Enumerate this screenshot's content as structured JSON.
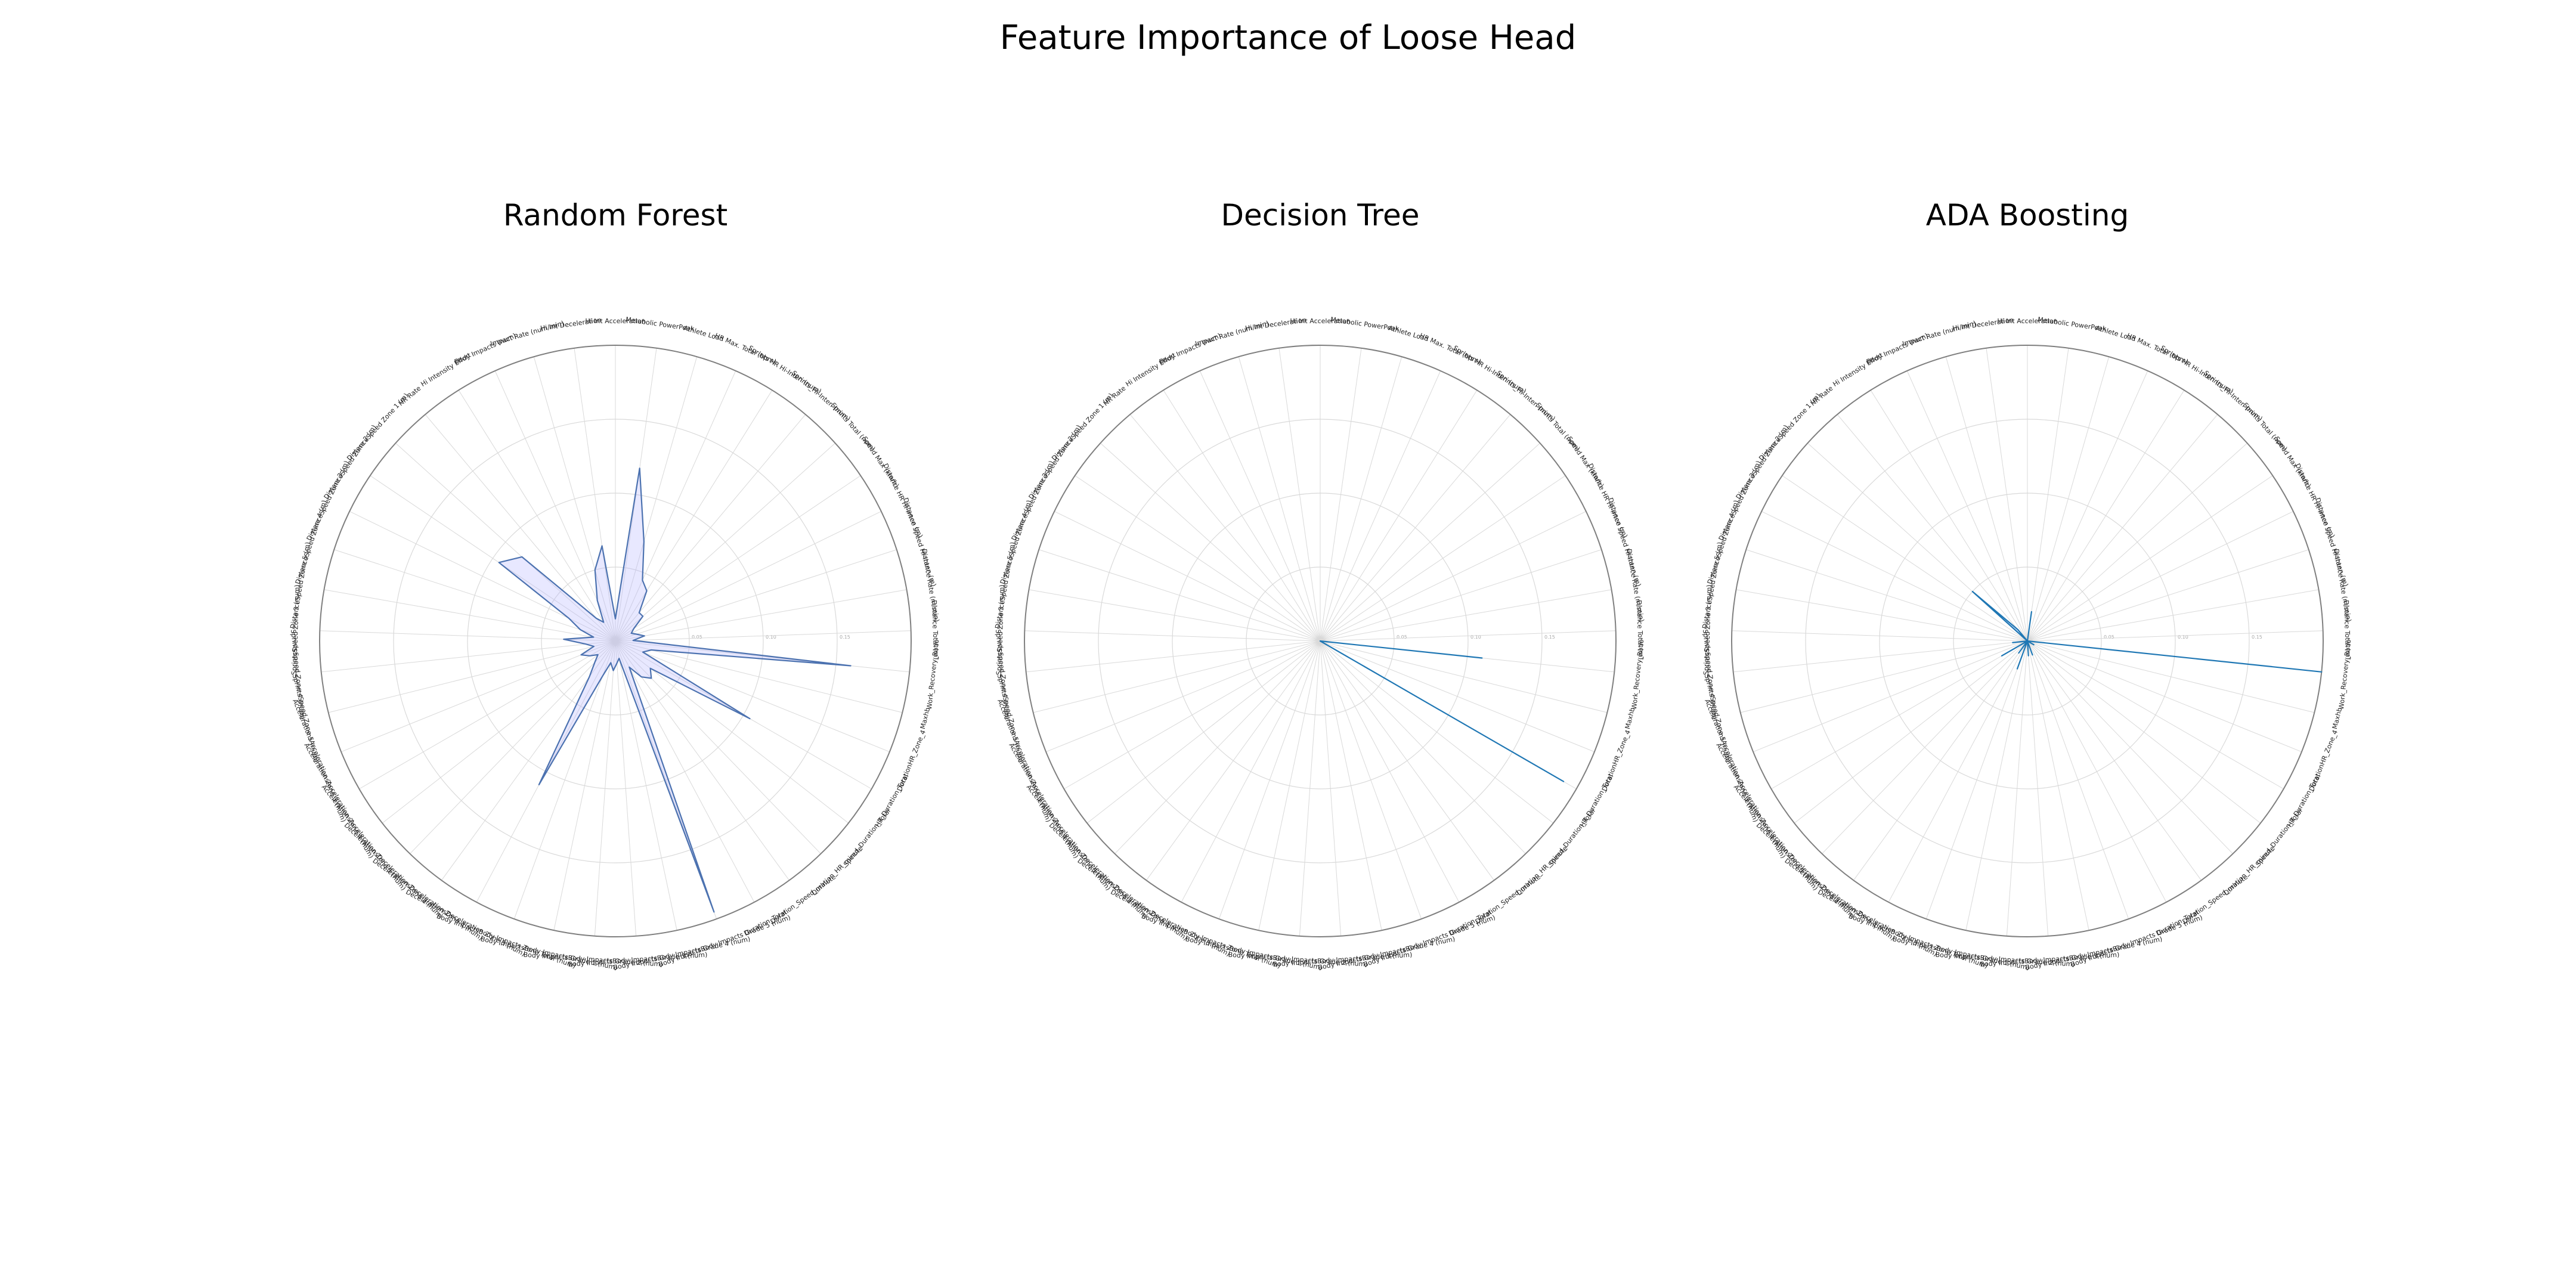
{
  "figure": {
    "title": "Feature Importance of Loose Head"
  },
  "chart_data": [
    {
      "type": "radar",
      "title": "Random Forest",
      "features": [
        "Hi Int Acceleration",
        "Metabolic PowerPeak",
        "Athlete Load",
        "HR Max. Total (bpm)",
        "Sprints HR Hi-Inten (num)",
        "Sprints_Hi-Inten (num)",
        "Sprints Total (num)",
        "Speed Max (km/h)",
        "Distance HR Hi-Inten (m)",
        "Distance Speed Hi-Inten (m)",
        "Distance Rate (m/min)",
        "Distance  Total (m)",
        "Work_Recovery_Ratio",
        "Maxhb",
        "DurationHR_Zone_4",
        "HR_Duration_Total",
        "Speed_Duration_Total",
        "Duration_HR_minute",
        "Duration_Speed_minute",
        "Duration_Total",
        "Body ImpactsBody Impacts Grade 5 (num)",
        "Body ImpactsBody Impacts Grade 4 (num)",
        "Body ImpactsBody Impacts Grade 3 (num)",
        "Body ImpactsBody Impacts Grade 2 (num)",
        "Body ImpactsBody Impacts Grade 1 (num)",
        "Body ImpactsBody Impacts Zone Total (num)",
        "DecelerationsDeceleration Zone 5 (num)",
        "DecelerationsDeceleration Zone 4 (num)",
        "DecelerationsDeceleration Zone 3 (num)",
        "AccelerationsAcceleration Zone 5 (num)",
        "AccelerationsAcceleration Zone 4 (num)",
        "AccelerationsAcceleration Zone 3 (num)",
        "SprintsSpeed Zone 5 (num)",
        "SprintsSpeed Zone 4 (num)",
        "SprintsSpeed Zone 3 (num)",
        "DistanceSpeed Zone 5  (m)",
        "DistanceSpeed Zone 4  (m)",
        "DistanceSpeed Zone 3  (m)",
        "DistanceSpeed Zone 2  (m)",
        "DistanceSpeed Zone 1  (m)",
        "HR Rate",
        "Hi Intensity Effort",
        "Body Impacts (num)",
        "Impact Rate (num/min)",
        "Hi Int Deceleration"
      ],
      "ticks": [
        "0.05",
        "0.10",
        "0.15"
      ],
      "ylim": [
        0,
        0.2
      ],
      "values": [
        0.015,
        0.118,
        0.07,
        0.045,
        0.04,
        0.025,
        0.025,
        0.015,
        0.012,
        0.015,
        0.02,
        0.012,
        0.16,
        0.025,
        0.02,
        0.105,
        0.03,
        0.035,
        0.03,
        0.02,
        0.195,
        0.012,
        0.015,
        0.02,
        0.015,
        0.025,
        0.11,
        0.03,
        0.02,
        0.015,
        0.02,
        0.025,
        0.015,
        0.02,
        0.035,
        0.015,
        0.025,
        0.035,
        0.095,
        0.085,
        0.02,
        0.015,
        0.03,
        0.05,
        0.065
      ],
      "color": "#4c72b0",
      "fill": "#b3b3ff"
    },
    {
      "type": "radar",
      "title": "Decision Tree",
      "features": [
        "Hi Int Acceleration",
        "Metabolic PowerPeak",
        "Athlete Load",
        "HR Max. Total (bpm)",
        "Sprints HR Hi-Inten (num)",
        "Sprints_Hi-Inten (num)",
        "Sprints Total (num)",
        "Speed Max (km/h)",
        "Distance HR Hi-Inten (m)",
        "Distance Speed Hi-Inten (m)",
        "Distance Rate (m/min)",
        "Distance  Total (m)",
        "Work_Recovery_Ratio",
        "Maxhb",
        "DurationHR_Zone_4",
        "HR_Duration_Total",
        "Speed_Duration_Total",
        "Duration_HR_minute",
        "Duration_Speed_minute",
        "Duration_Total",
        "Body ImpactsBody Impacts Grade 5 (num)",
        "Body ImpactsBody Impacts Grade 4 (num)",
        "Body ImpactsBody Impacts Grade 3 (num)",
        "Body ImpactsBody Impacts Grade 2 (num)",
        "Body ImpactsBody Impacts Grade 1 (num)",
        "Body ImpactsBody Impacts Zone Total (num)",
        "DecelerationsDeceleration Zone 5 (num)",
        "DecelerationsDeceleration Zone 4 (num)",
        "DecelerationsDeceleration Zone 3 (num)",
        "AccelerationsAcceleration Zone 5 (num)",
        "AccelerationsAcceleration Zone 4 (num)",
        "AccelerationsAcceleration Zone 3 (num)",
        "SprintsSpeed Zone 5 (num)",
        "SprintsSpeed Zone 4 (num)",
        "SprintsSpeed Zone 3 (num)",
        "DistanceSpeed Zone 5  (m)",
        "DistanceSpeed Zone 4  (m)",
        "DistanceSpeed Zone 3  (m)",
        "DistanceSpeed Zone 2  (m)",
        "DistanceSpeed Zone 1  (m)",
        "HR Rate",
        "Hi Intensity Effort",
        "Body Impacts (num)",
        "Impact Rate (num/min)",
        "Hi Int Deceleration"
      ],
      "ticks": [
        "0.05",
        "0.10",
        "0.15"
      ],
      "ylim": [
        0,
        0.2
      ],
      "values": [
        0,
        0,
        0,
        0,
        0,
        0,
        0,
        0,
        0,
        0,
        0,
        0,
        0.11,
        0,
        0,
        0.19,
        0,
        0,
        0,
        0,
        0,
        0,
        0,
        0,
        0,
        0,
        0,
        0,
        0,
        0,
        0,
        0,
        0,
        0,
        0,
        0,
        0,
        0,
        0,
        0,
        0,
        0,
        0,
        0,
        0
      ],
      "color": "#1f77b4",
      "fill": "#b3b3ff"
    },
    {
      "type": "radar",
      "title": "ADA Boosting",
      "features": [
        "Hi Int Acceleration",
        "Metabolic PowerPeak",
        "Athlete Load",
        "HR Max. Total (bpm)",
        "Sprints HR Hi-Inten (num)",
        "Sprints_Hi-Inten (num)",
        "Sprints Total (num)",
        "Speed Max (km/h)",
        "Distance HR Hi-Inten (m)",
        "Distance Speed Hi-Inten (m)",
        "Distance Rate (m/min)",
        "Distance  Total (m)",
        "Work_Recovery_Ratio",
        "Maxhb",
        "DurationHR_Zone_4",
        "HR_Duration_Total",
        "Speed_Duration_Total",
        "Duration_HR_minute",
        "Duration_Speed_minute",
        "Duration_Total",
        "Body ImpactsBody Impacts Grade 5 (num)",
        "Body ImpactsBody Impacts Grade 4 (num)",
        "Body ImpactsBody Impacts Grade 3 (num)",
        "Body ImpactsBody Impacts Grade 2 (num)",
        "Body ImpactsBody Impacts Grade 1 (num)",
        "Body ImpactsBody Impacts Zone Total (num)",
        "DecelerationsDeceleration Zone 5 (num)",
        "DecelerationsDeceleration Zone 4 (num)",
        "DecelerationsDeceleration Zone 3 (num)",
        "AccelerationsAcceleration Zone 5 (num)",
        "AccelerationsAcceleration Zone 4 (num)",
        "AccelerationsAcceleration Zone 3 (num)",
        "SprintsSpeed Zone 5 (num)",
        "SprintsSpeed Zone 4 (num)",
        "SprintsSpeed Zone 3 (num)",
        "DistanceSpeed Zone 5  (m)",
        "DistanceSpeed Zone 4  (m)",
        "DistanceSpeed Zone 3  (m)",
        "DistanceSpeed Zone 2  (m)",
        "DistanceSpeed Zone 1  (m)",
        "HR Rate",
        "Hi Intensity Effort",
        "Body Impacts (num)",
        "Impact Rate (num/min)",
        "Hi Int Deceleration"
      ],
      "ticks": [
        "0.05",
        "0.10",
        "0.15"
      ],
      "ylim": [
        0,
        0.2
      ],
      "values": [
        0,
        0.02,
        0,
        0,
        0,
        0,
        0,
        0,
        0,
        0,
        0,
        0,
        0.2,
        0,
        0,
        0.005,
        0,
        0,
        0,
        0,
        0.01,
        0,
        0.01,
        0,
        0,
        0.02,
        0,
        0.01,
        0,
        0,
        0.02,
        0,
        0,
        0.01,
        0,
        0,
        0,
        0,
        0,
        0.05,
        0.01,
        0,
        0,
        0,
        0
      ],
      "color": "#1f77b4",
      "fill": "#b3b3ff"
    }
  ]
}
